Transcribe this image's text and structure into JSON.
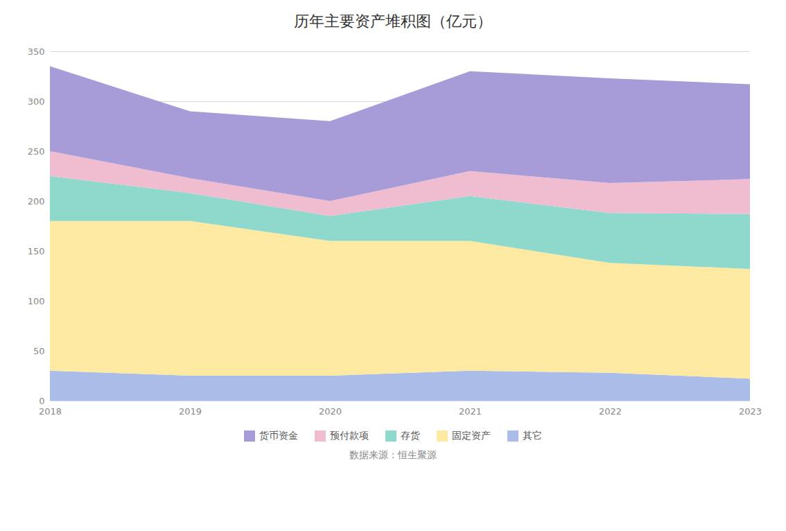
{
  "chart_data": {
    "type": "area",
    "title": "历年主要资产堆积图（亿元）",
    "stacked": true,
    "x": [
      2018,
      2019,
      2020,
      2021,
      2022,
      2023
    ],
    "series": [
      {
        "name": "其它",
        "color": "#aabce8",
        "values": [
          30,
          25,
          25,
          30,
          28,
          22
        ]
      },
      {
        "name": "固定资产",
        "color": "#fde9a2",
        "values": [
          150,
          155,
          135,
          130,
          110,
          110
        ]
      },
      {
        "name": "存货",
        "color": "#8ed8cc",
        "values": [
          45,
          28,
          25,
          45,
          50,
          55
        ]
      },
      {
        "name": "预付款项",
        "color": "#f0bcd0",
        "values": [
          25,
          15,
          15,
          25,
          30,
          35
        ]
      },
      {
        "name": "货币资金",
        "color": "#a89cd8",
        "values": [
          85,
          67,
          80,
          100,
          105,
          95
        ]
      }
    ],
    "xlim": [
      2018,
      2023
    ],
    "xticks": [
      2018,
      2019,
      2020,
      2021,
      2022,
      2023
    ],
    "ylim": [
      0,
      350
    ],
    "yticks": [
      0,
      50,
      100,
      150,
      200,
      250,
      300,
      350
    ],
    "grid": true,
    "legend": "bottom",
    "caption": "数据来源：恒生聚源"
  }
}
